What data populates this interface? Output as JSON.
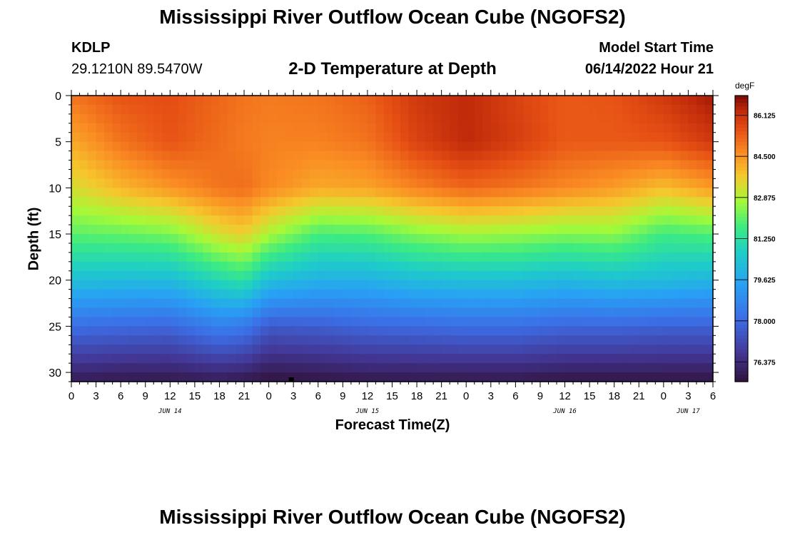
{
  "header": {
    "title": "Mississippi River Outflow Ocean Cube (NGOFS2)",
    "station": "KDLP",
    "coords": "29.1210N  89.5470W",
    "subtitle": "2-D Temperature at Depth",
    "model_start_label": "Model Start Time",
    "model_start_value": "06/14/2022 Hour 21"
  },
  "footer": {
    "title": "Mississippi River Outflow Ocean Cube (NGOFS2)"
  },
  "chart_data": {
    "type": "heatmap",
    "title": "2-D Temperature at Depth",
    "xlabel": "Forecast Time(Z)",
    "ylabel": "Depth (ft)",
    "colorbar_unit": "degF",
    "x_ticks": [
      "0",
      "3",
      "6",
      "9",
      "12",
      "15",
      "18",
      "21",
      "0",
      "3",
      "6",
      "9",
      "12",
      "15",
      "18",
      "21",
      "0",
      "3",
      "6",
      "9",
      "12",
      "15",
      "18",
      "21",
      "0",
      "3",
      "6"
    ],
    "date_labels": [
      {
        "text": "JUN 14",
        "at_hour": 12
      },
      {
        "text": "JUN 15",
        "at_hour": 36
      },
      {
        "text": "JUN 16",
        "at_hour": 60
      },
      {
        "text": "JUN 17",
        "at_hour": 75
      }
    ],
    "xlim": [
      0,
      78
    ],
    "ylim": [
      0,
      31
    ],
    "y_ticks": [
      0,
      5,
      10,
      15,
      20,
      25,
      30
    ],
    "y_inverted": true,
    "colorbar_ticks": [
      "86.125",
      "84.500",
      "82.875",
      "81.250",
      "79.625",
      "78.000",
      "76.375"
    ],
    "colorbar_range": [
      75.6,
      86.9
    ],
    "time_hours": [
      0,
      6,
      12,
      18,
      21,
      24,
      30,
      36,
      42,
      48,
      54,
      60,
      66,
      72,
      78
    ],
    "depth_ft": [
      0,
      5,
      10,
      15,
      20,
      25,
      31
    ],
    "temperature_degF": [
      [
        85.0,
        85.5,
        85.6,
        85.2,
        85.0,
        84.9,
        85.0,
        85.3,
        86.0,
        86.3,
        85.8,
        85.4,
        85.5,
        86.0,
        86.6
      ],
      [
        84.2,
        85.0,
        85.5,
        85.1,
        84.9,
        84.8,
        84.8,
        85.0,
        85.8,
        86.3,
        85.9,
        85.4,
        85.4,
        85.5,
        86.0
      ],
      [
        83.3,
        84.0,
        84.5,
        85.0,
        85.1,
        84.7,
        84.2,
        84.3,
        84.8,
        85.2,
        85.0,
        84.7,
        84.4,
        83.9,
        84.4
      ],
      [
        82.0,
        82.1,
        82.3,
        83.3,
        83.6,
        82.8,
        81.8,
        81.9,
        82.4,
        82.7,
        82.6,
        82.4,
        82.5,
        81.7,
        81.9
      ],
      [
        80.3,
        80.2,
        80.2,
        81.0,
        81.3,
        80.3,
        79.9,
        79.9,
        80.2,
        80.3,
        80.3,
        80.1,
        80.3,
        80.2,
        80.0
      ],
      [
        78.1,
        78.0,
        77.9,
        78.6,
        78.4,
        77.6,
        77.7,
        77.9,
        78.0,
        78.1,
        78.1,
        77.9,
        77.9,
        77.8,
        77.8
      ],
      [
        75.9,
        75.8,
        75.8,
        75.9,
        75.8,
        75.6,
        75.7,
        75.8,
        75.8,
        75.8,
        75.8,
        75.7,
        75.7,
        75.7,
        75.7
      ]
    ]
  }
}
